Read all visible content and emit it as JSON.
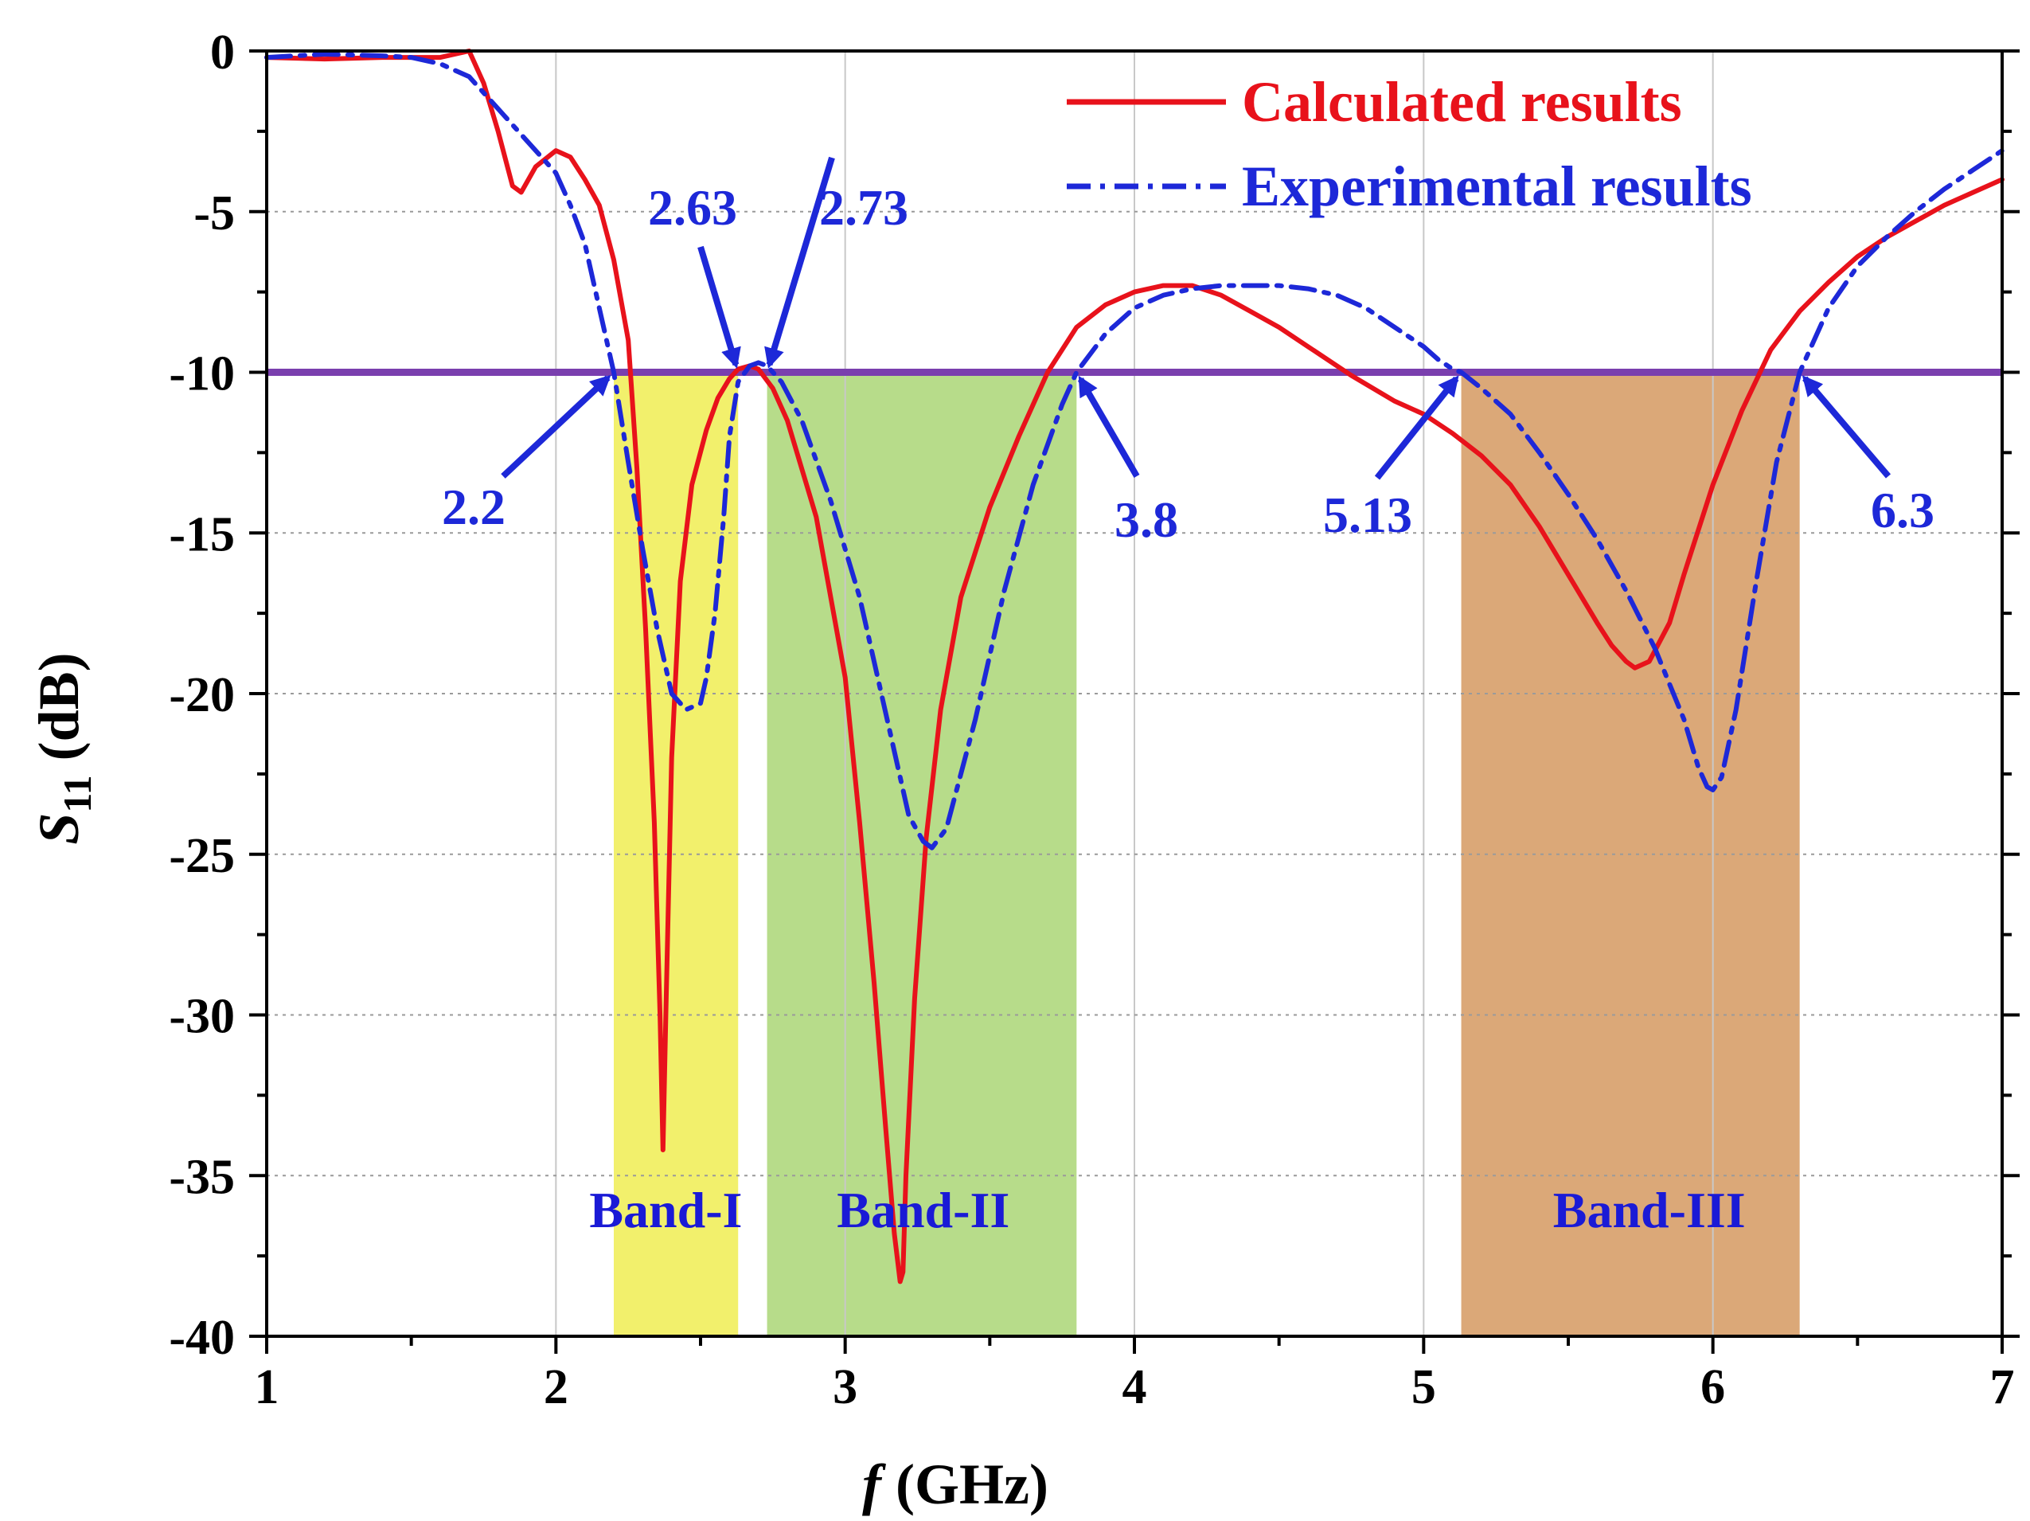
{
  "chart_data": {
    "type": "line",
    "xlabel_italic": "f",
    "xlabel_rest": " (GHz)",
    "ylabel_main": "S",
    "ylabel_sub": "11",
    "ylabel_rest": " (dB)",
    "xlim": [
      1,
      7
    ],
    "ylim": [
      -40,
      0
    ],
    "xticks": [
      1,
      2,
      3,
      4,
      5,
      6,
      7
    ],
    "yticks": [
      0,
      -5,
      -10,
      -15,
      -20,
      -25,
      -30,
      -35,
      -40
    ],
    "grid": true,
    "threshold": {
      "value": -10,
      "color": "#7a3fae"
    },
    "bands": [
      {
        "name": "Band-I",
        "x0": 2.2,
        "x1": 2.63,
        "color": "#f2f06c",
        "label_color": "#1a1ad6"
      },
      {
        "name": "Band-II",
        "x0": 2.73,
        "x1": 3.8,
        "color": "#b7dc8a",
        "label_color": "#1a1ad6"
      },
      {
        "name": "Band-III",
        "x0": 5.13,
        "x1": 6.3,
        "color": "#dba878",
        "label_color": "#1a1ad6"
      }
    ],
    "series": [
      {
        "name": "Calculated results",
        "color": "#e8121b",
        "style": "solid",
        "x": [
          1.0,
          1.2,
          1.4,
          1.6,
          1.7,
          1.75,
          1.8,
          1.85,
          1.88,
          1.93,
          2.0,
          2.05,
          2.1,
          2.15,
          2.2,
          2.25,
          2.28,
          2.31,
          2.34,
          2.36,
          2.37,
          2.38,
          2.4,
          2.43,
          2.47,
          2.52,
          2.56,
          2.6,
          2.63,
          2.67,
          2.7,
          2.75,
          2.8,
          2.9,
          3.0,
          3.05,
          3.1,
          3.14,
          3.17,
          3.19,
          3.2,
          3.21,
          3.24,
          3.28,
          3.33,
          3.4,
          3.5,
          3.6,
          3.7,
          3.8,
          3.9,
          4.0,
          4.1,
          4.2,
          4.3,
          4.4,
          4.5,
          4.6,
          4.75,
          4.9,
          5.0,
          5.1,
          5.2,
          5.3,
          5.4,
          5.5,
          5.6,
          5.65,
          5.7,
          5.73,
          5.78,
          5.85,
          5.9,
          6.0,
          6.1,
          6.2,
          6.3,
          6.4,
          6.5,
          6.6,
          6.7,
          6.8,
          6.9,
          7.0
        ],
        "y": [
          -0.2,
          -0.25,
          -0.2,
          -0.2,
          0.0,
          -1.0,
          -2.5,
          -4.2,
          -4.4,
          -3.6,
          -3.1,
          -3.3,
          -4.0,
          -4.8,
          -6.5,
          -9.0,
          -13.0,
          -18.0,
          -24.0,
          -30.0,
          -34.2,
          -30.0,
          -22.0,
          -16.5,
          -13.5,
          -11.8,
          -10.8,
          -10.2,
          -9.9,
          -9.8,
          -9.9,
          -10.5,
          -11.5,
          -14.5,
          -19.5,
          -24.0,
          -29.0,
          -33.5,
          -36.8,
          -38.3,
          -38.0,
          -35.0,
          -29.5,
          -24.5,
          -20.5,
          -17.0,
          -14.2,
          -12.0,
          -10.0,
          -8.6,
          -7.9,
          -7.5,
          -7.3,
          -7.3,
          -7.6,
          -8.1,
          -8.6,
          -9.2,
          -10.1,
          -10.9,
          -11.3,
          -11.9,
          -12.6,
          -13.5,
          -14.8,
          -16.3,
          -17.8,
          -18.5,
          -19.0,
          -19.2,
          -19.0,
          -17.8,
          -16.3,
          -13.5,
          -11.2,
          -9.3,
          -8.1,
          -7.2,
          -6.4,
          -5.8,
          -5.3,
          -4.8,
          -4.4,
          -4.0
        ]
      },
      {
        "name": "Experimental results",
        "color": "#1d28d8",
        "style": "dashdot",
        "x": [
          1.0,
          1.2,
          1.4,
          1.5,
          1.6,
          1.7,
          1.8,
          1.9,
          2.0,
          2.05,
          2.1,
          2.15,
          2.2,
          2.25,
          2.3,
          2.35,
          2.4,
          2.45,
          2.5,
          2.52,
          2.55,
          2.58,
          2.6,
          2.63,
          2.67,
          2.7,
          2.73,
          2.78,
          2.85,
          2.95,
          3.05,
          3.15,
          3.22,
          3.27,
          3.3,
          3.35,
          3.45,
          3.55,
          3.65,
          3.75,
          3.8,
          3.9,
          4.0,
          4.1,
          4.2,
          4.3,
          4.4,
          4.5,
          4.6,
          4.7,
          4.8,
          4.9,
          5.0,
          5.05,
          5.1,
          5.13,
          5.2,
          5.3,
          5.4,
          5.5,
          5.6,
          5.7,
          5.8,
          5.9,
          5.95,
          5.98,
          6.0,
          6.03,
          6.08,
          6.15,
          6.22,
          6.3,
          6.4,
          6.5,
          6.6,
          6.7,
          6.8,
          6.9,
          7.0
        ],
        "y": [
          -0.2,
          -0.1,
          -0.15,
          -0.2,
          -0.4,
          -0.8,
          -1.8,
          -2.8,
          -3.8,
          -4.8,
          -6.0,
          -8.0,
          -10.0,
          -12.8,
          -15.5,
          -18.0,
          -20.0,
          -20.5,
          -20.3,
          -19.5,
          -17.5,
          -14.5,
          -12.0,
          -10.3,
          -9.8,
          -9.7,
          -9.8,
          -10.3,
          -11.5,
          -14.0,
          -17.0,
          -21.0,
          -23.8,
          -24.6,
          -24.8,
          -24.2,
          -20.8,
          -16.8,
          -13.5,
          -11.0,
          -10.0,
          -8.8,
          -8.0,
          -7.6,
          -7.4,
          -7.3,
          -7.3,
          -7.3,
          -7.4,
          -7.6,
          -8.0,
          -8.6,
          -9.2,
          -9.6,
          -9.9,
          -10.0,
          -10.5,
          -11.3,
          -12.5,
          -13.8,
          -15.2,
          -16.8,
          -18.6,
          -20.8,
          -22.3,
          -22.9,
          -23.0,
          -22.6,
          -20.5,
          -16.5,
          -12.8,
          -10.0,
          -8.0,
          -6.7,
          -5.8,
          -5.0,
          -4.3,
          -3.7,
          -3.1
        ]
      }
    ],
    "annotations": [
      {
        "label": "2.63",
        "target_x": 2.63,
        "target_y": -10
      },
      {
        "label": "2.73",
        "target_x": 2.73,
        "target_y": -10
      },
      {
        "label": "2.2",
        "target_x": 2.2,
        "target_y": -10
      },
      {
        "label": "3.8",
        "target_x": 3.8,
        "target_y": -10
      },
      {
        "label": "5.13",
        "target_x": 5.13,
        "target_y": -10
      },
      {
        "label": "6.3",
        "target_x": 6.3,
        "target_y": -10
      }
    ],
    "legend_position": "top-right"
  }
}
